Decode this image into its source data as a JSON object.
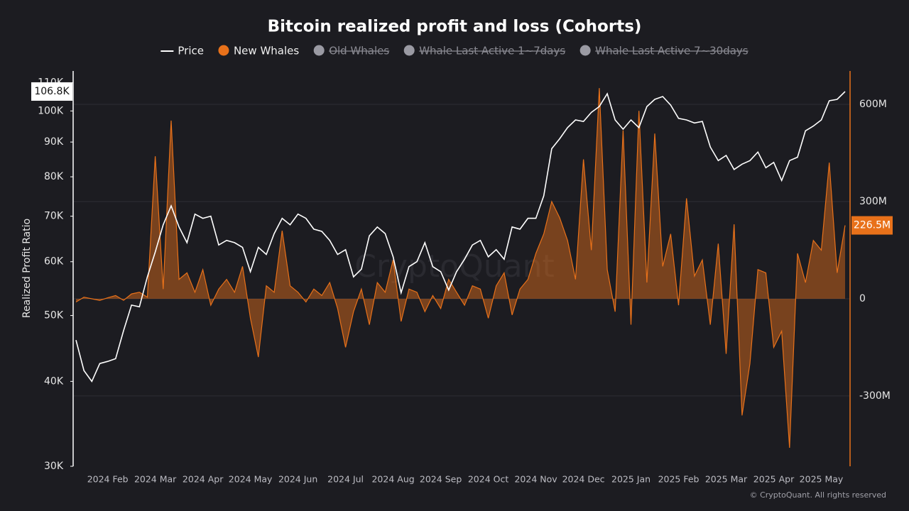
{
  "chart_data": {
    "type": "line_area",
    "title": "Bitcoin realized profit and loss (Cohorts)",
    "y_label": "Realized Profit Ratio",
    "watermark": "CryptoQuant",
    "copyright": "© CryptoQuant. All rights reserved",
    "categories": [
      null,
      null,
      null,
      null,
      "2024 Feb",
      null,
      null,
      null,
      null,
      null,
      "2024 Mar",
      null,
      null,
      null,
      null,
      null,
      "2024 Apr",
      null,
      null,
      null,
      null,
      null,
      "2024 May",
      null,
      null,
      null,
      null,
      null,
      "2024 Jun",
      null,
      null,
      null,
      null,
      null,
      "2024 Jul",
      null,
      null,
      null,
      null,
      null,
      "2024 Aug",
      null,
      null,
      null,
      null,
      null,
      "2024 Sep",
      null,
      null,
      null,
      null,
      null,
      "2024 Oct",
      null,
      null,
      null,
      null,
      null,
      "2024 Nov",
      null,
      null,
      null,
      null,
      null,
      "2024 Dec",
      null,
      null,
      null,
      null,
      null,
      "2025 Jan",
      null,
      null,
      null,
      null,
      null,
      "2025 Feb",
      null,
      null,
      null,
      null,
      null,
      "2025 Mar",
      null,
      null,
      null,
      null,
      null,
      "2025 Apr",
      null,
      null,
      null,
      null,
      null,
      "2025 May",
      null,
      null,
      null
    ],
    "series": [
      {
        "name": "Price",
        "color": "#ffffff",
        "axis": "y",
        "visible": true,
        "values": [
          46000,
          41500,
          40000,
          42500,
          42800,
          43200,
          47500,
          51800,
          51500,
          57000,
          62000,
          68000,
          72500,
          67500,
          64000,
          70500,
          69500,
          70000,
          63500,
          64500,
          64000,
          63000,
          58000,
          63000,
          61500,
          66000,
          69500,
          68000,
          70500,
          69500,
          67000,
          66500,
          64500,
          61500,
          62500,
          57000,
          58500,
          65500,
          67500,
          66000,
          61000,
          54000,
          59000,
          60000,
          64000,
          59000,
          58000,
          54500,
          58000,
          60500,
          63500,
          64500,
          61000,
          62500,
          60500,
          67500,
          67000,
          69500,
          69500,
          75000,
          88000,
          91000,
          94500,
          97000,
          96500,
          99500,
          101500,
          106000,
          97000,
          94000,
          97000,
          94500,
          101500,
          104000,
          105000,
          102000,
          97500,
          97000,
          96000,
          96500,
          88500,
          84500,
          86000,
          82000,
          83500,
          84500,
          87000,
          82500,
          84000,
          79000,
          84500,
          85500,
          93500,
          95000,
          97000,
          103500,
          104000,
          106800
        ],
        "value_labels": [
          null,
          null,
          null,
          null,
          null,
          null,
          null,
          null,
          null,
          null,
          null,
          null,
          null,
          null,
          null,
          null,
          null,
          null,
          null,
          null,
          null,
          null,
          null,
          null,
          null,
          null,
          null,
          null,
          null,
          null,
          null,
          null,
          null,
          null,
          null,
          null,
          null,
          null,
          null,
          null,
          null,
          null,
          null,
          null,
          null,
          null,
          null,
          null,
          null,
          null,
          null,
          null,
          null,
          null,
          null,
          null,
          null,
          null,
          null,
          null,
          null,
          null,
          null,
          null,
          null,
          null,
          null,
          null,
          null,
          null,
          null,
          null,
          null,
          null,
          null,
          null,
          null,
          null,
          null,
          null,
          null,
          null,
          null,
          null,
          null,
          null,
          null,
          null,
          null,
          null,
          null,
          null,
          null,
          null,
          null,
          null,
          null,
          "106.8K"
        ]
      },
      {
        "name": "New Whales",
        "color": "#e8711a",
        "axis": "y2",
        "visible": true,
        "values": [
          -10,
          5,
          0,
          -5,
          3,
          10,
          -5,
          15,
          20,
          5,
          440,
          30,
          550,
          60,
          80,
          20,
          90,
          -20,
          30,
          60,
          20,
          100,
          -60,
          -180,
          40,
          20,
          210,
          40,
          20,
          -10,
          30,
          10,
          50,
          -30,
          -150,
          -40,
          30,
          -80,
          50,
          20,
          120,
          -70,
          30,
          20,
          -40,
          10,
          -30,
          60,
          20,
          -20,
          40,
          30,
          -60,
          40,
          80,
          -50,
          30,
          60,
          140,
          200,
          300,
          250,
          180,
          60,
          430,
          150,
          650,
          90,
          -40,
          520,
          -80,
          580,
          50,
          510,
          100,
          200,
          -20,
          310,
          70,
          120,
          -80,
          170,
          -170,
          230,
          -360,
          -200,
          90,
          80,
          -150,
          -100,
          -460,
          140,
          50,
          180,
          150,
          420,
          80,
          226.5
        ],
        "value_labels": [
          null,
          null,
          null,
          null,
          null,
          null,
          null,
          null,
          null,
          null,
          null,
          null,
          null,
          null,
          null,
          null,
          null,
          null,
          null,
          null,
          null,
          null,
          null,
          null,
          null,
          null,
          null,
          null,
          null,
          null,
          null,
          null,
          null,
          null,
          null,
          null,
          null,
          null,
          null,
          null,
          null,
          null,
          null,
          null,
          null,
          null,
          null,
          null,
          null,
          null,
          null,
          null,
          null,
          null,
          null,
          null,
          null,
          null,
          null,
          null,
          null,
          null,
          null,
          null,
          null,
          null,
          null,
          null,
          null,
          null,
          null,
          null,
          null,
          null,
          null,
          null,
          null,
          null,
          null,
          null,
          null,
          null,
          null,
          null,
          null,
          null,
          null,
          null,
          null,
          null,
          null,
          null,
          null,
          null,
          null,
          null,
          null,
          "226.5M"
        ]
      },
      {
        "name": "Old Whales",
        "color": "#9a9aa3",
        "visible": false
      },
      {
        "name": "Whale Last Active 1~7days",
        "color": "#9a9aa3",
        "visible": false
      },
      {
        "name": "Whale Last Active 7~30days",
        "color": "#9a9aa3",
        "visible": false
      }
    ],
    "log_y": true,
    "ylim": [
      30000,
      114500
    ],
    "yticks": [
      {
        "value": 30000,
        "label": "30K"
      },
      {
        "value": 40000,
        "label": "40K"
      },
      {
        "value": 50000,
        "label": "50K"
      },
      {
        "value": 60000,
        "label": "60K"
      },
      {
        "value": 70000,
        "label": "70K"
      },
      {
        "value": 80000,
        "label": "80K"
      },
      {
        "value": 90000,
        "label": "90K"
      },
      {
        "value": 100000,
        "label": "100K"
      },
      {
        "value": 110000,
        "label": "110K"
      }
    ],
    "y2lim": [
      -517,
      703
    ],
    "y2ticks": [
      {
        "value": -300,
        "label": "-300M"
      },
      0,
      {
        "value": 300,
        "label": "300M"
      },
      {
        "value": 600,
        "label": "600M"
      }
    ],
    "grid": true
  }
}
